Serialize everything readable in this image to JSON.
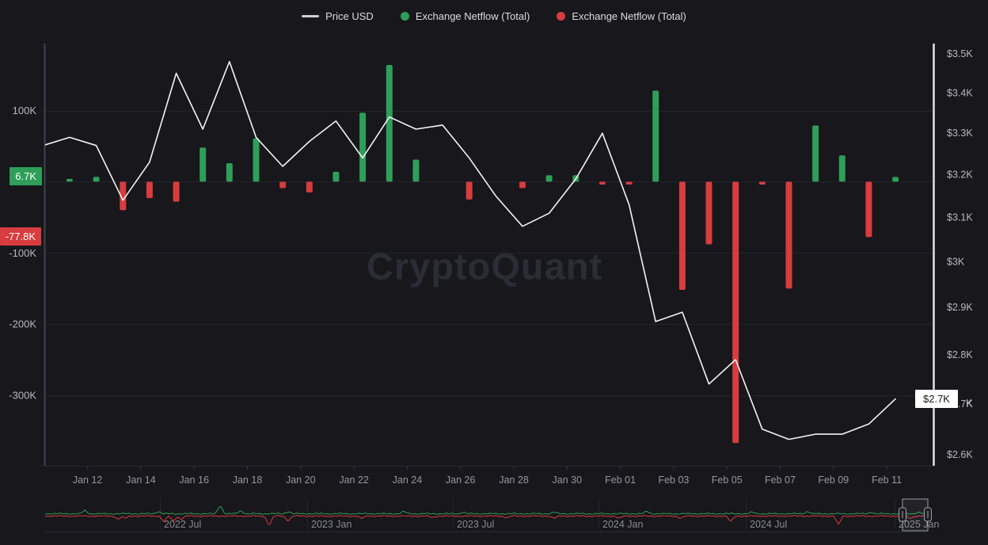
{
  "legend": {
    "items": [
      {
        "label": "Price USD",
        "marker": "line",
        "color": "#cfd0d4"
      },
      {
        "label": "Exchange Netflow (Total)",
        "marker": "dot",
        "color": "#2e9e58"
      },
      {
        "label": "Exchange Netflow (Total)",
        "marker": "dot",
        "color": "#d83c3e"
      }
    ]
  },
  "watermark": "CryptoQuant",
  "badges": {
    "netflow_positive_last": "6.7K",
    "netflow_negative_last": "-77.8K",
    "price_last": "$2.7K",
    "price_axis_remnant": "K"
  },
  "chart_data": {
    "type": "mixed",
    "x": [
      "Jan 10",
      "Jan 11",
      "Jan 12",
      "Jan 13",
      "Jan 14",
      "Jan 15",
      "Jan 16",
      "Jan 17",
      "Jan 18",
      "Jan 19",
      "Jan 20",
      "Jan 21",
      "Jan 22",
      "Jan 23",
      "Jan 24",
      "Jan 25",
      "Jan 26",
      "Jan 27",
      "Jan 28",
      "Jan 29",
      "Jan 30",
      "Jan 31",
      "Feb 01",
      "Feb 02",
      "Feb 03",
      "Feb 04",
      "Feb 05",
      "Feb 06",
      "Feb 07",
      "Feb 08",
      "Feb 09",
      "Feb 10",
      "Feb 11"
    ],
    "x_axis_tick_labels": [
      "Jan 12",
      "Jan 14",
      "Jan 16",
      "Jan 18",
      "Jan 20",
      "Jan 22",
      "Jan 24",
      "Jan 26",
      "Jan 28",
      "Jan 30",
      "Feb 01",
      "Feb 03",
      "Feb 05",
      "Feb 07",
      "Feb 09",
      "Feb 11"
    ],
    "series": [
      {
        "name": "Price USD",
        "type": "line",
        "y_axis": "right",
        "color": "#f4f4f6",
        "unit": "USD thousands",
        "values": [
          3.27,
          3.29,
          3.27,
          3.14,
          3.23,
          3.45,
          3.31,
          3.48,
          3.29,
          3.22,
          3.28,
          3.33,
          3.24,
          3.34,
          3.31,
          3.32,
          3.24,
          3.15,
          3.08,
          3.11,
          3.19,
          3.3,
          3.13,
          2.87,
          2.89,
          2.74,
          2.79,
          2.65,
          2.63,
          2.64,
          2.64,
          2.66,
          2.71
        ]
      },
      {
        "name": "Exchange Netflow (Total)",
        "type": "bar",
        "y_axis": "left",
        "positive_color": "#2e9e58",
        "negative_color": "#d83c3e",
        "unit": "K",
        "values": [
          0,
          4,
          6.9,
          -40,
          -23,
          -28,
          48,
          26,
          61,
          -9,
          -15,
          14,
          97,
          164,
          31,
          0,
          -25,
          0,
          -9,
          9,
          9,
          -4,
          -4,
          128,
          -152,
          -88,
          -367,
          -4,
          -150,
          79,
          37,
          -77.8,
          6.7
        ]
      }
    ],
    "left_axis": {
      "tick_values": [
        100,
        -100,
        -200,
        -300
      ],
      "tick_labels": [
        "100K",
        "-100K",
        "-200K",
        "-300K"
      ],
      "gridline_values": [
        100,
        0,
        -100,
        -200,
        -300
      ],
      "approx_range_k": [
        -399,
        194
      ]
    },
    "right_axis": {
      "scale": "log",
      "tick_values": [
        3.5,
        3.4,
        3.3,
        3.2,
        3.1,
        3.0,
        2.9,
        2.8,
        2.7,
        2.6
      ],
      "tick_labels": [
        "$3.5K",
        "$3.4K",
        "$3.3K",
        "$3.2K",
        "$3.1K",
        "$3K",
        "$2.9K",
        "$2.8K",
        "$2.7K",
        "$2.6K"
      ],
      "approx_range_usd": [
        2600,
        3520
      ]
    },
    "grid": "horizontal-only",
    "legend_position": "top-center"
  },
  "navigator": {
    "tick_labels": [
      "2022 Jul",
      "2023 Jan",
      "2023 Jul",
      "2024 Jan",
      "2024 Jul",
      "2025 Jan"
    ],
    "inflow_color": "#2e9e58",
    "outflow_color": "#d83c3e",
    "green_spikes": [
      [
        107,
        4
      ],
      [
        200,
        3
      ],
      [
        278,
        11
      ],
      [
        304,
        4
      ],
      [
        364,
        3
      ],
      [
        510,
        3
      ],
      [
        585,
        2
      ],
      [
        700,
        2
      ],
      [
        817,
        3
      ],
      [
        950,
        2
      ],
      [
        1020,
        3
      ],
      [
        1100,
        2
      ],
      [
        1160,
        2
      ]
    ],
    "red_spikes": [
      [
        149,
        4
      ],
      [
        158,
        3
      ],
      [
        207,
        7
      ],
      [
        219,
        6
      ],
      [
        229,
        4
      ],
      [
        340,
        12
      ],
      [
        364,
        6
      ],
      [
        457,
        3
      ],
      [
        546,
        2
      ],
      [
        640,
        2
      ],
      [
        700,
        3
      ],
      [
        782,
        3
      ],
      [
        860,
        3
      ],
      [
        923,
        7
      ],
      [
        1059,
        11
      ],
      [
        1150,
        3
      ]
    ]
  }
}
